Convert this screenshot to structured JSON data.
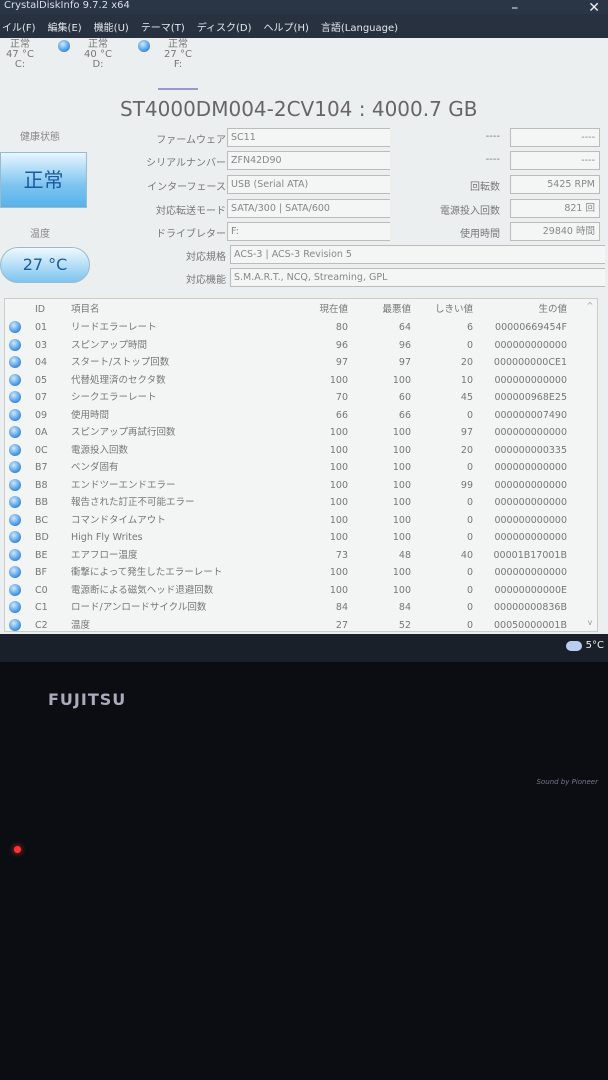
{
  "window": {
    "title": "CrystalDiskInfo 9.7.2 x64",
    "minimize": "–",
    "close": "✕"
  },
  "menu": [
    "イル(F)",
    "編集(E)",
    "機能(U)",
    "テーマ(T)",
    "ディスク(D)",
    "ヘルプ(H)",
    "言語(Language)"
  ],
  "drives": [
    {
      "status": "正常",
      "temp": "47 °C",
      "letter": "C:"
    },
    {
      "status": "正常",
      "temp": "40 °C",
      "letter": "D:"
    },
    {
      "status": "正常",
      "temp": "27 °C",
      "letter": "F:"
    }
  ],
  "model": "ST4000DM004-2CV104 : 4000.7 GB",
  "health": {
    "label": "健康状態",
    "value": "正常"
  },
  "temperature": {
    "label": "温度",
    "value": "27 °C"
  },
  "info": [
    {
      "label": "ファームウェア",
      "value": "SC11"
    },
    {
      "label": "シリアルナンバー",
      "value": "ZFN42D90"
    },
    {
      "label": "インターフェース",
      "value": "USB (Serial ATA)"
    },
    {
      "label": "対応転送モード",
      "value": "SATA/300 | SATA/600"
    },
    {
      "label": "ドライブレター",
      "value": "F:"
    },
    {
      "label": "対応規格",
      "value": "ACS-3 | ACS-3 Revision 5"
    },
    {
      "label": "対応機能",
      "value": "S.M.A.R.T., NCQ, Streaming, GPL"
    }
  ],
  "info_right": [
    {
      "label": "----",
      "value": "----"
    },
    {
      "label": "----",
      "value": "----"
    },
    {
      "label": "回転数",
      "value": "5425 RPM"
    },
    {
      "label": "電源投入回数",
      "value": "821 回"
    },
    {
      "label": "使用時間",
      "value": "29840 時間"
    }
  ],
  "table": {
    "headers": {
      "id": "ID",
      "name": "項目名",
      "current": "現在値",
      "worst": "最悪値",
      "threshold": "しきい値",
      "raw": "生の値"
    },
    "rows": [
      {
        "id": "01",
        "name": "リードエラーレート",
        "current": "80",
        "worst": "64",
        "threshold": "6",
        "raw": "00000669454F"
      },
      {
        "id": "03",
        "name": "スピンアップ時間",
        "current": "96",
        "worst": "96",
        "threshold": "0",
        "raw": "000000000000"
      },
      {
        "id": "04",
        "name": "スタート/ストップ回数",
        "current": "97",
        "worst": "97",
        "threshold": "20",
        "raw": "000000000CE1"
      },
      {
        "id": "05",
        "name": "代替処理済のセクタ数",
        "current": "100",
        "worst": "100",
        "threshold": "10",
        "raw": "000000000000"
      },
      {
        "id": "07",
        "name": "シークエラーレート",
        "current": "70",
        "worst": "60",
        "threshold": "45",
        "raw": "000000968E25"
      },
      {
        "id": "09",
        "name": "使用時間",
        "current": "66",
        "worst": "66",
        "threshold": "0",
        "raw": "000000007490"
      },
      {
        "id": "0A",
        "name": "スピンアップ再試行回数",
        "current": "100",
        "worst": "100",
        "threshold": "97",
        "raw": "000000000000"
      },
      {
        "id": "0C",
        "name": "電源投入回数",
        "current": "100",
        "worst": "100",
        "threshold": "20",
        "raw": "000000000335"
      },
      {
        "id": "B7",
        "name": "ベンダ固有",
        "current": "100",
        "worst": "100",
        "threshold": "0",
        "raw": "000000000000"
      },
      {
        "id": "B8",
        "name": "エンドツーエンドエラー",
        "current": "100",
        "worst": "100",
        "threshold": "99",
        "raw": "000000000000"
      },
      {
        "id": "BB",
        "name": "報告された訂正不可能エラー",
        "current": "100",
        "worst": "100",
        "threshold": "0",
        "raw": "000000000000"
      },
      {
        "id": "BC",
        "name": "コマンドタイムアウト",
        "current": "100",
        "worst": "100",
        "threshold": "0",
        "raw": "000000000000"
      },
      {
        "id": "BD",
        "name": "High Fly Writes",
        "current": "100",
        "worst": "100",
        "threshold": "0",
        "raw": "000000000000"
      },
      {
        "id": "BE",
        "name": "エアフロー温度",
        "current": "73",
        "worst": "48",
        "threshold": "40",
        "raw": "00001B17001B"
      },
      {
        "id": "BF",
        "name": "衝撃によって発生したエラーレート",
        "current": "100",
        "worst": "100",
        "threshold": "0",
        "raw": "000000000000"
      },
      {
        "id": "C0",
        "name": "電源断による磁気ヘッド退避回数",
        "current": "100",
        "worst": "100",
        "threshold": "0",
        "raw": "00000000000E"
      },
      {
        "id": "C1",
        "name": "ロード/アンロードサイクル回数",
        "current": "84",
        "worst": "84",
        "threshold": "0",
        "raw": "00000000836B"
      },
      {
        "id": "C2",
        "name": "温度",
        "current": "27",
        "worst": "52",
        "threshold": "0",
        "raw": "00050000001B"
      }
    ]
  },
  "taskbar": {
    "weather_temp": "5°C"
  },
  "bezel": {
    "brand": "FUJITSU",
    "sound": "Sound by Pioneer"
  }
}
